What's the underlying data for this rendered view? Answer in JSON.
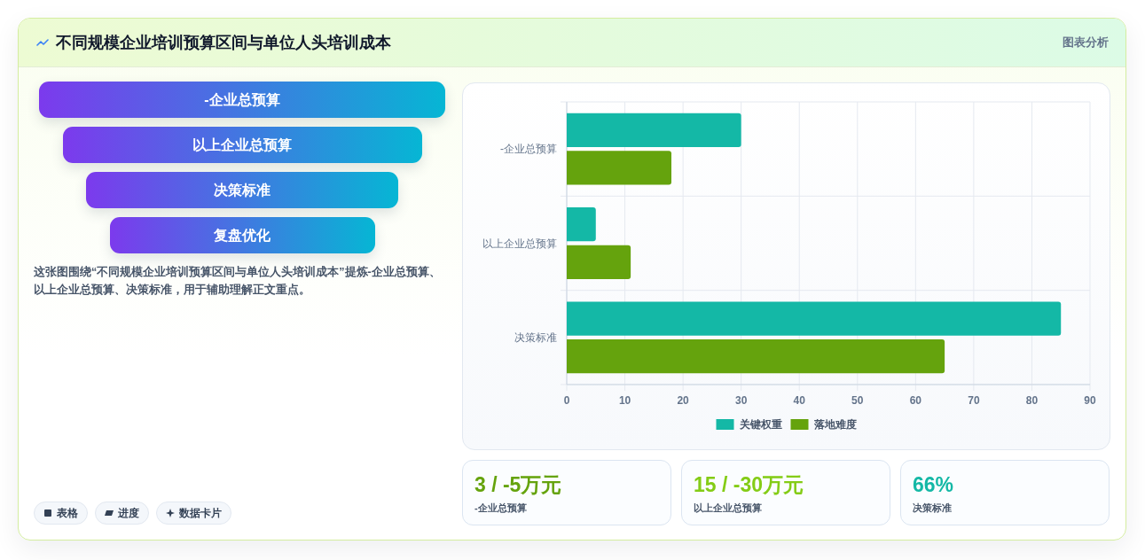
{
  "chart_data": [
    {
      "type": "other",
      "title": "不同规模企业培训预算区间与单位人头培训成本",
      "categories": [
        "-企业总预算",
        "以上企业总预算",
        "决策标准",
        "复盘优化"
      ],
      "annotations": [
        "图表分析",
        "这张图围绕“不同规模企业培训预算区间与单位人头培训成本”提炼-企业总预算、以上企业总预算、决策标准，用于辅助理解正文重点。",
        "表格",
        "进度",
        "数据卡片"
      ]
    },
    {
      "type": "bar",
      "orientation": "horizontal",
      "categories": [
        "-企业总预算",
        "以上企业总预算",
        "决策标准"
      ],
      "series": [
        {
          "name": "关键权重",
          "color": "#14b8a6",
          "values": [
            30,
            5,
            85
          ]
        },
        {
          "name": "落地难度",
          "color": "#65a30d",
          "values": [
            18,
            11,
            65
          ]
        }
      ],
      "xlim": [
        0,
        90
      ],
      "xticks": [
        0,
        10,
        20,
        30,
        40,
        50,
        60,
        70,
        80,
        90
      ],
      "grid": true,
      "legend": "bottom"
    },
    {
      "type": "other",
      "categories": [
        "-企业总预算",
        "以上企业总预算",
        "决策标准"
      ],
      "annotations": [
        "3 / -5万元",
        "15 / -30万元",
        "66%"
      ]
    }
  ]
}
